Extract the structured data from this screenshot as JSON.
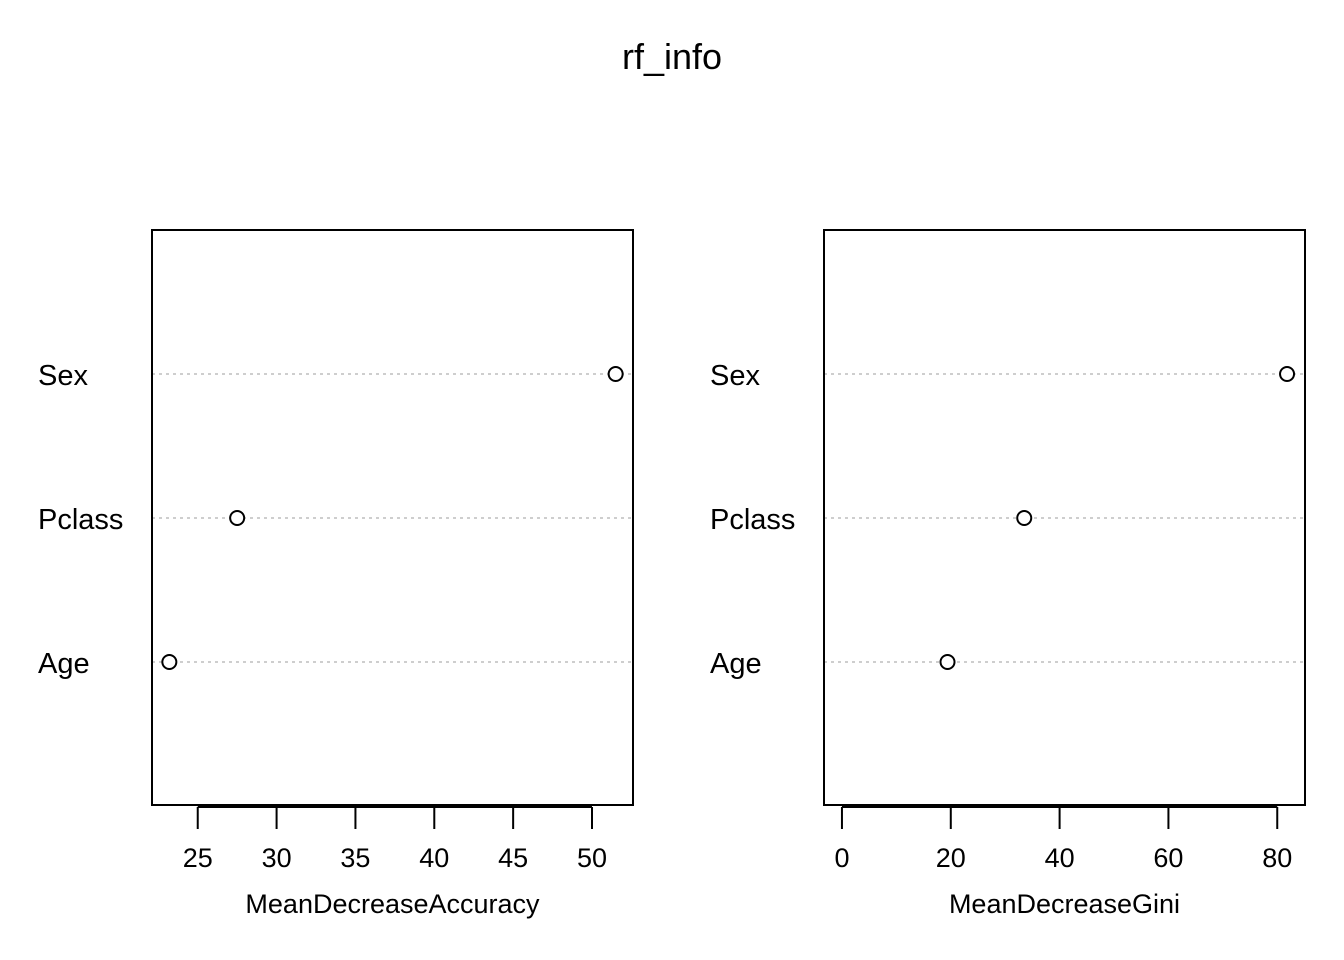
{
  "title": "rf_info",
  "chart_data": [
    {
      "type": "scatter",
      "subtype": "dotchart",
      "title": "",
      "xlabel": "MeanDecreaseAccuracy",
      "ylabel": "",
      "categories": [
        "Sex",
        "Pclass",
        "Age"
      ],
      "values": [
        51.5,
        27.5,
        23.2
      ],
      "xlim": [
        22.1,
        52.6
      ],
      "xticks": [
        25,
        30,
        35,
        40,
        45,
        50
      ],
      "xtick_labels": [
        "25",
        "30",
        "35",
        "40",
        "45",
        "50"
      ]
    },
    {
      "type": "scatter",
      "subtype": "dotchart",
      "title": "",
      "xlabel": "MeanDecreaseGini",
      "ylabel": "",
      "categories": [
        "Sex",
        "Pclass",
        "Age"
      ],
      "values": [
        81.8,
        33.5,
        19.4
      ],
      "xlim": [
        -3.3,
        85.1
      ],
      "xticks": [
        0,
        20,
        40,
        60,
        80
      ],
      "xtick_labels": [
        "0",
        "20",
        "40",
        "60",
        "80"
      ]
    }
  ]
}
